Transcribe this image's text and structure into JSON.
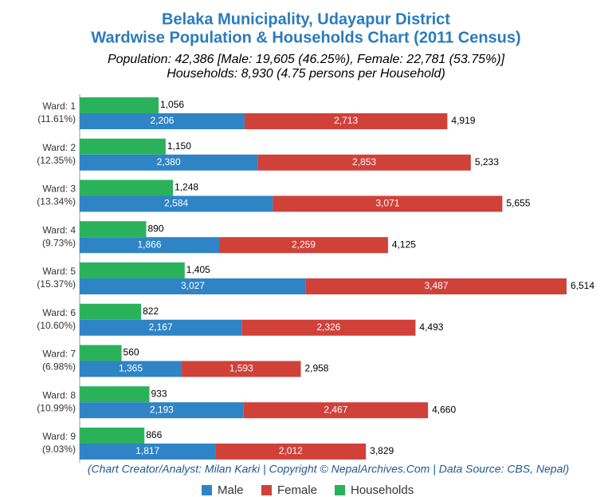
{
  "chart_data": {
    "type": "bar",
    "orientation": "horizontal",
    "title": [
      "Belaka Municipality, Udayapur District",
      "Wardwise Population & Households Chart (2011 Census)"
    ],
    "subtitle": [
      "Population: 42,386 [Male: 19,605 (46.25%), Female: 22,781 (53.75%)]",
      "Households: 8,930 (4.75 persons per Household)"
    ],
    "footer": "(Chart Creator/Analyst: Milan Karki | Copyright © NepalArchives.Com | Data Source: CBS, Nepal)",
    "categories": [
      "Ward: 1",
      "Ward: 2",
      "Ward: 3",
      "Ward: 4",
      "Ward: 5",
      "Ward: 6",
      "Ward: 7",
      "Ward: 8",
      "Ward: 9"
    ],
    "category_shares": [
      "(11.61%)",
      "(12.35%)",
      "(13.34%)",
      "(9.73%)",
      "(15.37%)",
      "(10.60%)",
      "(6.98%)",
      "(10.99%)",
      "(9.03%)"
    ],
    "series": [
      {
        "name": "Male",
        "color": "#2f84c6",
        "stack": "population",
        "values": [
          2206,
          2380,
          2584,
          1866,
          3027,
          2167,
          1365,
          2193,
          1817
        ],
        "value_labels": [
          "2,206",
          "2,380",
          "2,584",
          "1,866",
          "3,027",
          "2,167",
          "1,365",
          "2,193",
          "1,817"
        ]
      },
      {
        "name": "Female",
        "color": "#d0413a",
        "stack": "population",
        "values": [
          2713,
          2853,
          3071,
          2259,
          3487,
          2326,
          1593,
          2467,
          2012
        ],
        "value_labels": [
          "2,713",
          "2,853",
          "3,071",
          "2,259",
          "3,487",
          "2,326",
          "1,593",
          "2,467",
          "2,012"
        ]
      },
      {
        "name": "Households",
        "color": "#2ab25b",
        "stack": "households",
        "values": [
          1056,
          1150,
          1248,
          890,
          1405,
          822,
          560,
          933,
          866
        ],
        "value_labels": [
          "1,056",
          "1,150",
          "1,248",
          "890",
          "1,405",
          "822",
          "560",
          "933",
          "866"
        ]
      }
    ],
    "totals": [
      4919,
      5233,
      5655,
      4125,
      6514,
      4493,
      2958,
      4660,
      3829
    ],
    "total_labels": [
      "4,919",
      "5,233",
      "5,655",
      "4,125",
      "6,514",
      "4,493",
      "2,958",
      "4,660",
      "3,829"
    ],
    "legend": "bottom"
  }
}
